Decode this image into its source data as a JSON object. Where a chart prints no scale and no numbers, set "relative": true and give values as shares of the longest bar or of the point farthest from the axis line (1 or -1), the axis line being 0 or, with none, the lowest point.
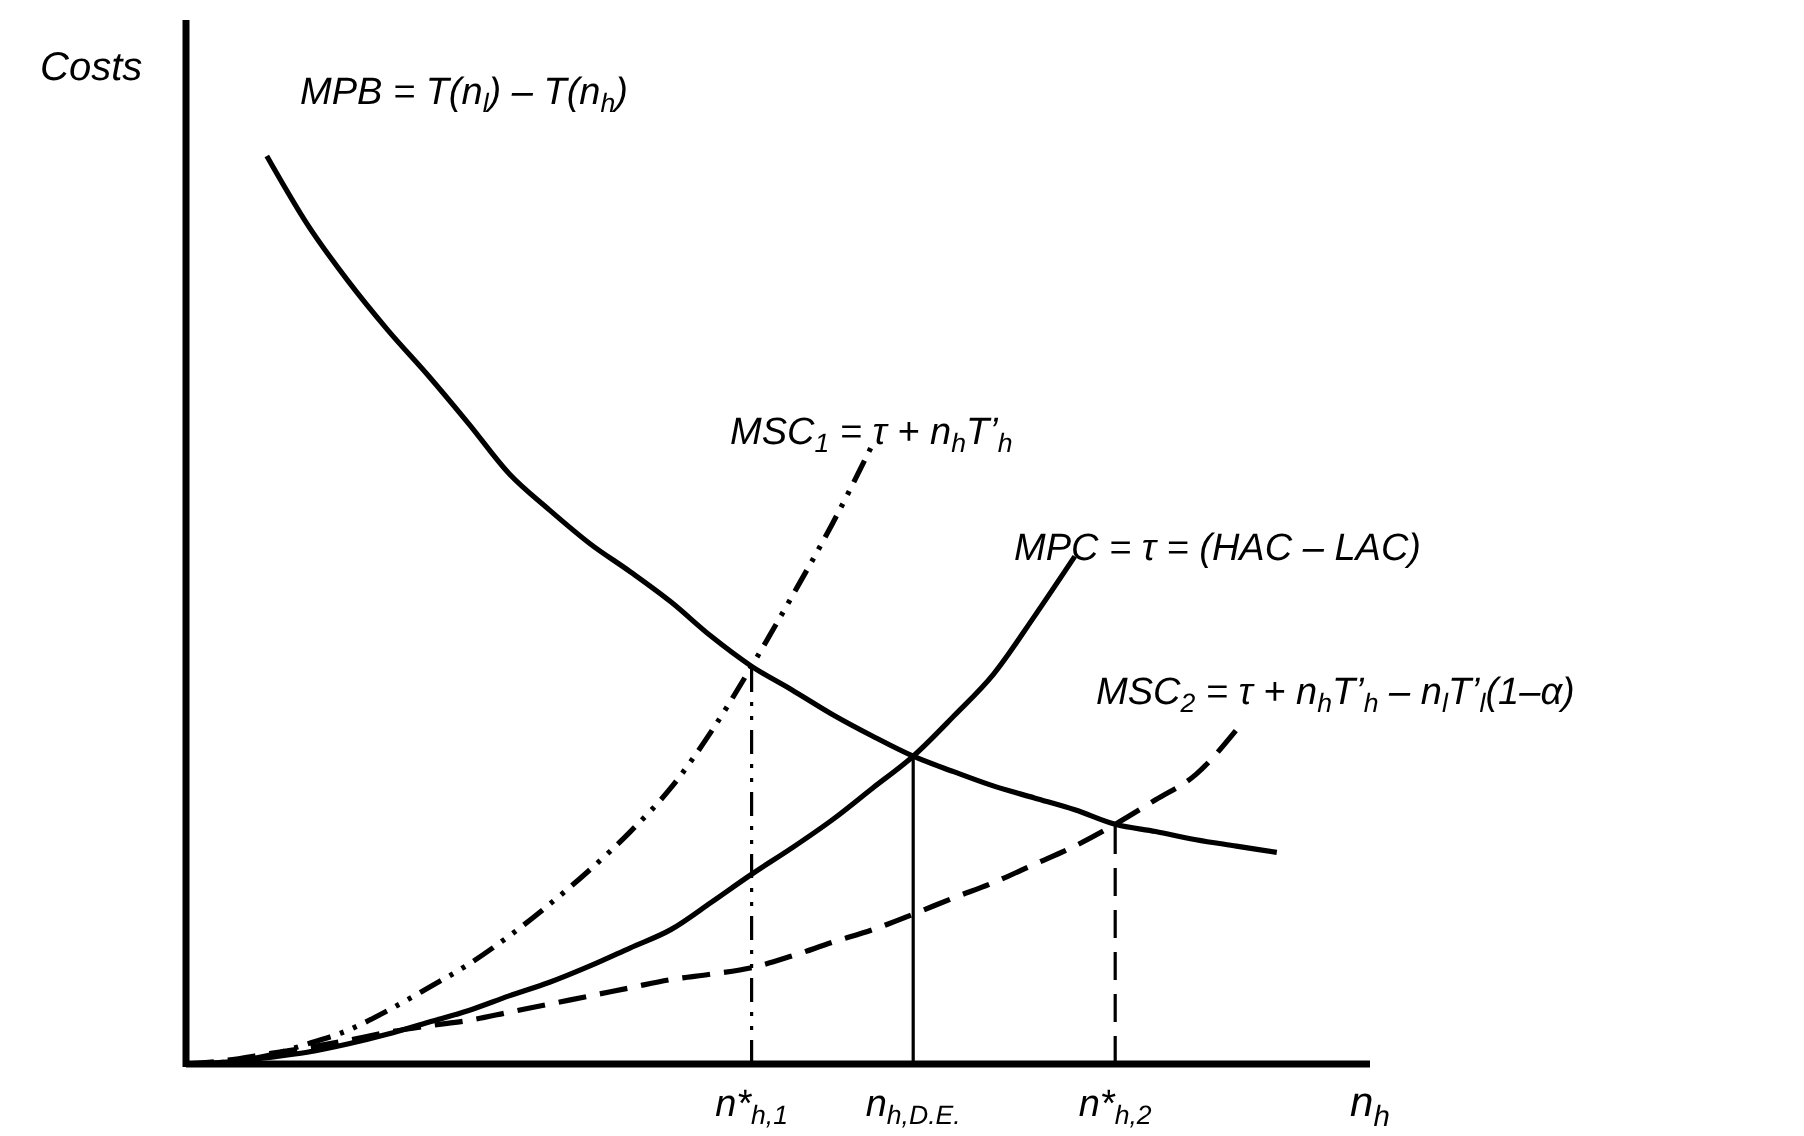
{
  "chart_data": {
    "type": "line",
    "relative": true,
    "xlabel": "n$_{h}$",
    "ylabel": "Costs",
    "categories": [
      null,
      null,
      null,
      null,
      null,
      null,
      null,
      null,
      null,
      null,
      null,
      null,
      null,
      null,
      "n*$_{h,1}$",
      null,
      null,
      null,
      "n$_{h,D.E.}$",
      null,
      null,
      null,
      null,
      "n*$_{h,2}$",
      null,
      null,
      null,
      null,
      null,
      null
    ],
    "tick_labels": "x",
    "marker": "none",
    "ref_lines": [
      {
        "axis": "x",
        "value": "n*$_{h,1}$",
        "line_style": "dashdot",
        "color": "#000000"
      },
      {
        "axis": "x",
        "value": "n$_{h,D.E.}$",
        "line_style": "solid",
        "color": "#000000"
      },
      {
        "axis": "x",
        "value": "n*$_{h,2}$",
        "line_style": "dashed",
        "color": "#000000"
      }
    ],
    "series": [
      {
        "name": "MPB = T(n$_{l}$) – T(n$_{h}$)",
        "color": "#000000",
        "line_style": "solid",
        "values": [
          null,
          null,
          1,
          0.925,
          0.863,
          0.808,
          0.758,
          0.705,
          0.65,
          0.61,
          0.573,
          0.542,
          0.509,
          0.471,
          0.438,
          0.412,
          0.385,
          0.361,
          0.339,
          0.322,
          0.306,
          0.293,
          0.28,
          0.264,
          0.256,
          0.247,
          0.24,
          0.233,
          null,
          null
        ]
      },
      {
        "name": "MSC$_{1}$ = τ + n$_{h}$T’$_{h}$",
        "color": "#000000",
        "line_style": "dashdot",
        "values": [
          0,
          0.002,
          0.009,
          0.022,
          0.037,
          0.059,
          0.084,
          0.11,
          0.141,
          0.176,
          0.214,
          0.256,
          0.304,
          0.366,
          0.438,
          0.515,
          0.595,
          0.683,
          null,
          null,
          null,
          null,
          null,
          null,
          null,
          null,
          null,
          null,
          null,
          null
        ]
      },
      {
        "name": "MPC = τ = (HAC – LAC)",
        "color": "#000000",
        "line_style": "solid",
        "values": [
          0,
          0.002,
          0.007,
          0.013,
          0.022,
          0.033,
          0.046,
          0.059,
          0.075,
          0.09,
          0.108,
          0.128,
          0.148,
          0.178,
          0.209,
          0.238,
          0.269,
          0.304,
          0.339,
          0.383,
          0.43,
          0.493,
          0.559,
          null,
          null,
          null,
          null,
          null,
          null,
          null
        ]
      },
      {
        "name": "MSC$_{2}$ = τ + n$_{h}$T’$_{h}$ – n$_{l}$T’$_{l}$(1–α)",
        "color": "#000000",
        "line_style": "dashed",
        "values": [
          0,
          0.004,
          0.011,
          0.018,
          0.026,
          0.035,
          0.042,
          0.048,
          0.057,
          0.066,
          0.075,
          0.084,
          0.093,
          0.099,
          0.106,
          0.119,
          0.134,
          0.148,
          0.165,
          0.183,
          0.2,
          0.22,
          0.24,
          0.264,
          0.291,
          0.319,
          0.368,
          null,
          null,
          null
        ]
      }
    ]
  }
}
